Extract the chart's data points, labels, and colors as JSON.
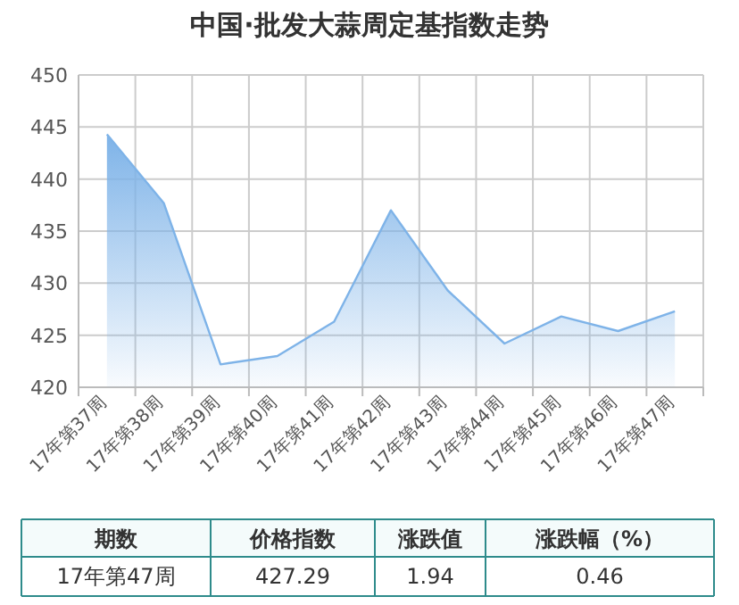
{
  "chart_data": [
    {
      "type": "area",
      "title": "中国·批发大蒜周定基指数走势",
      "categories": [
        "17年第37周",
        "17年第38周",
        "17年第39周",
        "17年第40周",
        "17年第41周",
        "17年第42周",
        "17年第43周",
        "17年第44周",
        "17年第45周",
        "17年第46周",
        "17年第47周"
      ],
      "values": [
        444.3,
        437.7,
        422.2,
        423.0,
        426.3,
        437.0,
        429.3,
        424.2,
        426.8,
        425.4,
        427.3
      ],
      "color": "#7eb3e8",
      "ylim": [
        420,
        450
      ],
      "yticks": [
        420,
        425,
        430,
        435,
        440,
        445,
        450
      ],
      "grid": true
    },
    {
      "type": "other",
      "annotations": [
        "期数",
        "价格指数",
        "涨跌值",
        "涨跌幅（%）",
        "17年第47周",
        "427.29",
        "1.94",
        "0.46"
      ]
    }
  ]
}
